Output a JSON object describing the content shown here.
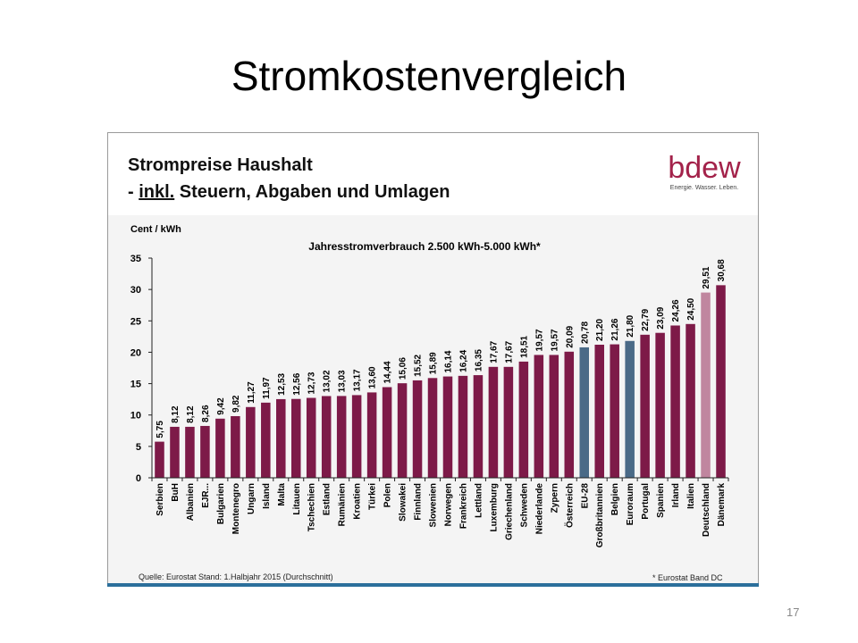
{
  "slide": {
    "title": "Stromkostenvergleich",
    "page_number": "17"
  },
  "panel": {
    "heading_line1": "Strompreise Haushalt",
    "heading_line2_prefix": "- ",
    "heading_line2_underlined": "inkl.",
    "heading_line2_rest": " Steuern, Abgaben und Umlagen",
    "logo_word": "bdew",
    "logo_tagline": "Energie. Wasser. Leben.",
    "source": "Quelle: Eurostat Stand: 1.Halbjahr 2015 (Durchschnitt)",
    "footnote": "* Eurostat Band DC"
  },
  "colors": {
    "default_bar": "#7d1a48",
    "eu_bar": "#4a6a87",
    "highlight_bar": "#c0869f",
    "logo": "#a3224a",
    "bottom_bar": "#2b6f9b"
  },
  "chart_data": {
    "type": "bar",
    "title": "Jahresstromverbrauch 2.500 kWh-5.000 kWh*",
    "ylabel": "Cent / kWh",
    "xlabel": "",
    "ylim": [
      0,
      35
    ],
    "yticks": [
      0,
      5,
      10,
      15,
      20,
      25,
      30,
      35
    ],
    "grid": false,
    "categories": [
      "Serbien",
      "BuH",
      "Albanien",
      "EJR...",
      "Bulgarien",
      "Montenegro",
      "Ungarn",
      "Island",
      "Malta",
      "Litauen",
      "Tschechien",
      "Estland",
      "Rumänien",
      "Kroatien",
      "Türkei",
      "Polen",
      "Slowakei",
      "Finnland",
      "Slowenien",
      "Norwegen",
      "Frankreich",
      "Lettland",
      "Luxemburg",
      "Griechenland",
      "Schweden",
      "Niederlande",
      "Zypern",
      "Österreich",
      "EU-28",
      "Großbritannien",
      "Belgien",
      "Euroraum",
      "Portugal",
      "Spanien",
      "Irland",
      "Italien",
      "Deutschland",
      "Dänemark"
    ],
    "values": [
      5.75,
      8.12,
      8.12,
      8.26,
      9.42,
      9.82,
      11.27,
      11.97,
      12.53,
      12.56,
      12.73,
      13.02,
      13.03,
      13.17,
      13.6,
      14.44,
      15.06,
      15.52,
      15.89,
      16.14,
      16.24,
      16.35,
      17.67,
      17.67,
      18.51,
      19.57,
      19.57,
      20.09,
      20.78,
      21.2,
      21.26,
      21.8,
      22.79,
      23.09,
      24.26,
      24.5,
      29.51,
      30.68
    ],
    "value_labels": [
      "5,75",
      "8,12",
      "8,12",
      "8,26",
      "9,42",
      "9,82",
      "11,27",
      "11,97",
      "12,53",
      "12,56",
      "12,73",
      "13,02",
      "13,03",
      "13,17",
      "13,60",
      "14,44",
      "15,06",
      "15,52",
      "15,89",
      "16,14",
      "16,24",
      "16,35",
      "17,67",
      "17,67",
      "18,51",
      "19,57",
      "19,57",
      "20,09",
      "20,78",
      "21,20",
      "21,26",
      "21,80",
      "22,79",
      "23,09",
      "24,26",
      "24,50",
      "29,51",
      "30,68"
    ],
    "bar_kind": [
      "d",
      "d",
      "d",
      "d",
      "d",
      "d",
      "d",
      "d",
      "d",
      "d",
      "d",
      "d",
      "d",
      "d",
      "d",
      "d",
      "d",
      "d",
      "d",
      "d",
      "d",
      "d",
      "d",
      "d",
      "d",
      "d",
      "d",
      "d",
      "eu",
      "d",
      "d",
      "eu",
      "d",
      "d",
      "d",
      "d",
      "hl",
      "d"
    ]
  }
}
